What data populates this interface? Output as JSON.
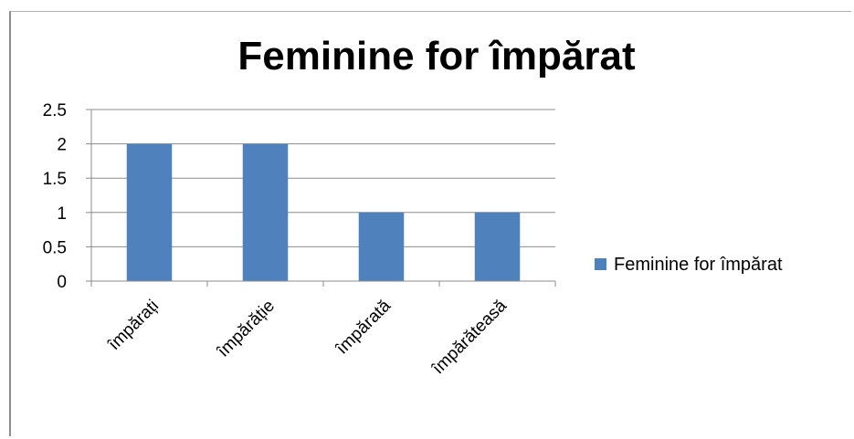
{
  "chart_data": {
    "type": "bar",
    "title": "Feminine for împărat",
    "xlabel": "",
    "ylabel": "",
    "categories": [
      "împărați",
      "împărăție",
      "împărată",
      "împărăteasă"
    ],
    "series": [
      {
        "name": "Feminine for împărat",
        "values": [
          2,
          2,
          1,
          1
        ],
        "color": "#4f81bd"
      }
    ],
    "ylim": [
      0,
      2.5
    ],
    "yticks": [
      "0",
      "0.5",
      "1",
      "1.5",
      "2",
      "2.5"
    ],
    "grid": true,
    "legend": "right"
  }
}
